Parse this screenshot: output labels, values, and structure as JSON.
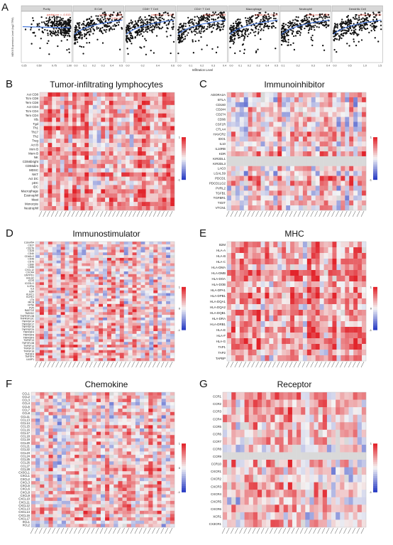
{
  "colors": {
    "low": "#2b3ec4",
    "mid": "#f4f4f4",
    "high": "#e2242b",
    "dot": "#111111",
    "fit": "#3a6fd8",
    "stat": "#d23a2a",
    "strip": "#d8d8d8"
  },
  "panel_a": {
    "letter": "A",
    "ylabel": "NEK6 Expression Level (log2 TPM)",
    "xlabel": "Infiltration Level"
  },
  "chart_data": [
    {
      "type": "scatter",
      "panel": "A",
      "ylabel": "NEK6 Expression Level (log2 TPM)",
      "xlabel": "Infiltration Level",
      "facets": [
        {
          "name": "Purity",
          "ticks": [
            "0.25",
            "0.50",
            "0.75",
            "1.00"
          ],
          "stat_rho": "-0.013",
          "stat_p": ""
        },
        {
          "name": "B Cell",
          "ticks": [
            "0.0",
            "0.1",
            "0.2",
            "0.3",
            "0.4",
            "0.5"
          ],
          "stat_rho": "0.356",
          "stat_p": "3.59e-15"
        },
        {
          "name": "CD8+ T Cell",
          "ticks": [
            "0.0",
            "0.2",
            "0.4",
            "0.6"
          ],
          "stat_rho": "0.167",
          "stat_p": ""
        },
        {
          "name": "CD4+ T Cell",
          "ticks": [
            "0.0",
            "0.1",
            "0.2",
            "0.3",
            "0.4"
          ],
          "stat_rho": "0.188",
          "stat_p": ""
        },
        {
          "name": "Macrophage",
          "ticks": [
            "0.0",
            "0.1",
            "0.2",
            "0.3",
            "0.4",
            "0.5"
          ],
          "stat_rho": "0.418",
          "stat_p": ""
        },
        {
          "name": "Neutrophil",
          "ticks": [
            "0.1",
            "0.2",
            "0.3",
            "0.4"
          ],
          "stat_rho": "0.352",
          "stat_p": ""
        },
        {
          "name": "Dendritic Cell",
          "ticks": [
            "0.0",
            "0.5",
            "1.0",
            "1.5"
          ],
          "stat_rho": "0.549",
          "stat_p": ""
        }
      ]
    },
    {
      "type": "heatmap",
      "panel": "B",
      "title": "Tumor-infiltrating lymphocytes",
      "rows": [
        "Act CD8",
        "Tcm CD8",
        "Tem CD8",
        "Act CD4",
        "Tcm CD4",
        "Tem CD4",
        "Tfh",
        "Tgd",
        "Th1",
        "Th17",
        "Th2",
        "Treg",
        "Act B",
        "Imm B",
        "Mem B",
        "NK",
        "CD56bright",
        "CD56dim",
        "MDSC",
        "NKT",
        "Act DC",
        "pDC",
        "iDC",
        "Macrophage",
        "Eosinophil",
        "Mast",
        "Monocyte",
        "Neutrophil"
      ],
      "legend": [
        "1",
        "-1"
      ]
    },
    {
      "type": "heatmap",
      "panel": "C",
      "title": "Immunoinhibitor",
      "rows": [
        "ADORA2A",
        "BTLA",
        "CD160",
        "CD244",
        "CD274",
        "CD96",
        "CSF1R",
        "CTLA4",
        "HAVCR2",
        "IDO1",
        "IL10",
        "IL10RB",
        "KDR",
        "KIR2DL1",
        "KIR2DL3",
        "LAG3",
        "LGALS9",
        "PDCD1",
        "PDCD1LG2",
        "PVRL2",
        "TGFB1",
        "TGFBR1",
        "TIGIT",
        "VTCN1"
      ],
      "legend": [
        "1",
        "-1"
      ]
    },
    {
      "type": "heatmap",
      "panel": "D",
      "title": "Immunostimulator",
      "rows": [
        "C10orf54",
        "CD27",
        "CD276",
        "CD28",
        "CD40",
        "CD40LG",
        "CD48",
        "CD70",
        "CD80",
        "CD86",
        "CXCL12",
        "CXCR4",
        "ENTPD1",
        "HHLA2",
        "ICOS",
        "ICOSLG",
        "IL2RA",
        "IL6",
        "IL6R",
        "KLRC1",
        "KLRK1",
        "LTA",
        "MICB",
        "NT5E",
        "PVR",
        "RAET1E",
        "TMIGD2",
        "TNFRSF13B",
        "TNFRSF13C",
        "TNFRSF14",
        "TNFRSF17",
        "TNFRSF18",
        "TNFRSF25",
        "TNFRSF4",
        "TNFRSF8",
        "TNFRSF9",
        "TNFSF13",
        "TNFSF13B",
        "TNFSF14",
        "TNFSF15",
        "TNFSF18",
        "TNFSF4",
        "TNFSF9",
        "ULBP1"
      ],
      "legend": [
        "1",
        "0",
        "-1"
      ]
    },
    {
      "type": "heatmap",
      "panel": "E",
      "title": "MHC",
      "rows": [
        "B2M",
        "HLA-A",
        "HLA-B",
        "HLA-C",
        "HLA-DMA",
        "HLA-DMB",
        "HLA-DOA",
        "HLA-DOB",
        "HLA-DPA1",
        "HLA-DPB1",
        "HLA-DQA1",
        "HLA-DQA2",
        "HLA-DQB1",
        "HLA-DRA",
        "HLA-DRB1",
        "HLA-E",
        "HLA-F",
        "HLA-G",
        "TAP1",
        "TAP2",
        "TAPBP"
      ],
      "legend": [
        "1",
        "0",
        "-1"
      ]
    },
    {
      "type": "heatmap",
      "panel": "F",
      "title": "Chemokine",
      "rows": [
        "CCL1",
        "CCL2",
        "CCL3",
        "CCL4",
        "CCL5",
        "CCL7",
        "CCL8",
        "CCL11",
        "CCL13",
        "CCL14",
        "CCL15",
        "CCL16",
        "CCL17",
        "CCL18",
        "CCL19",
        "CCL20",
        "CCL21",
        "CCL22",
        "CCL23",
        "CCL24",
        "CCL25",
        "CCL26",
        "CCL27",
        "CCL28",
        "CX3CL1",
        "CXCL1",
        "CXCL2",
        "CXCL3",
        "CXCL5",
        "CXCL6",
        "CXCL8",
        "CXCL9",
        "CXCL10",
        "CXCL11",
        "CXCL12",
        "CXCL13",
        "CXCL14",
        "CXCL16",
        "CXCL17",
        "XCL1",
        "XCL2"
      ],
      "legend": [
        "1",
        "0",
        "-1"
      ]
    },
    {
      "type": "heatmap",
      "panel": "G",
      "title": "Receptor",
      "rows": [
        "CCR1",
        "CCR2",
        "CCR3",
        "CCR4",
        "CCR5",
        "CCR6",
        "CCR7",
        "CCR8",
        "CCR9",
        "CCR10",
        "CXCR1",
        "CXCR2",
        "CXCR3",
        "CXCR4",
        "CXCR5",
        "CXCR6",
        "XCR1",
        "CX3CR1"
      ],
      "legend": [
        "1",
        "-1"
      ]
    }
  ]
}
